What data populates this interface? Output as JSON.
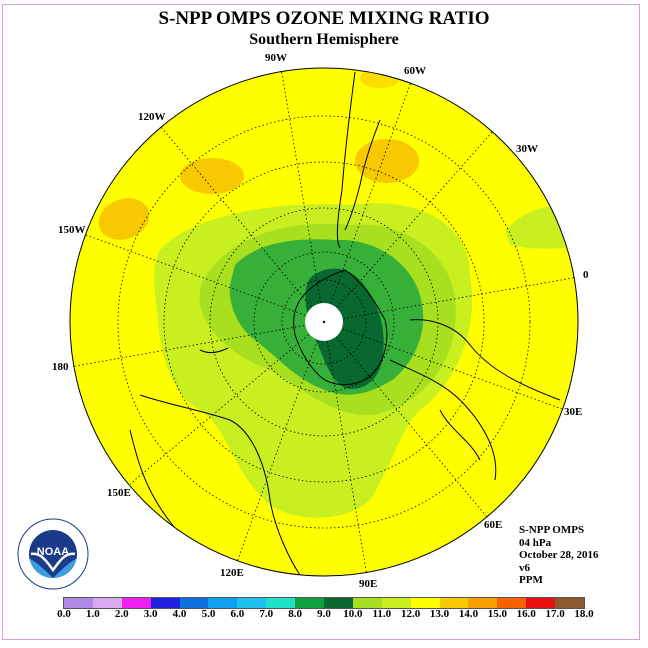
{
  "header": {
    "title": "S-NPP OMPS OZONE MIXING RATIO",
    "subtitle": "Southern Hemisphere"
  },
  "longitude_labels": {
    "lon_90w": "90W",
    "lon_60w": "60W",
    "lon_30w": "30W",
    "lon_0": "0",
    "lon_30e": "30E",
    "lon_60e": "60E",
    "lon_90e": "90E",
    "lon_120e": "120E",
    "lon_150e": "150E",
    "lon_180": "180",
    "lon_150w": "150W",
    "lon_120w": "120W"
  },
  "info": {
    "instrument": "S-NPP OMPS",
    "level": "04 hPa",
    "date": "October 28, 2016",
    "version": "v6",
    "units": "PPM"
  },
  "logo": {
    "text": "NOAA"
  },
  "colorbar": {
    "colors": [
      "#b088e8",
      "#d8a8f0",
      "#f020f0",
      "#2020e0",
      "#1070e0",
      "#10a0f0",
      "#20c0f0",
      "#20e0c8",
      "#10a040",
      "#086830",
      "#a8e020",
      "#c8f020",
      "#ffff00",
      "#f8c800",
      "#f8a000",
      "#f86000",
      "#e81010",
      "#8c5830"
    ],
    "tick_labels": [
      "0.0",
      "1.0",
      "2.0",
      "3.0",
      "4.0",
      "5.0",
      "6.0",
      "7.0",
      "8.0",
      "9.0",
      "10.0",
      "11.0",
      "12.0",
      "13.0",
      "14.0",
      "15.0",
      "16.0",
      "17.0",
      "18.0"
    ]
  }
}
